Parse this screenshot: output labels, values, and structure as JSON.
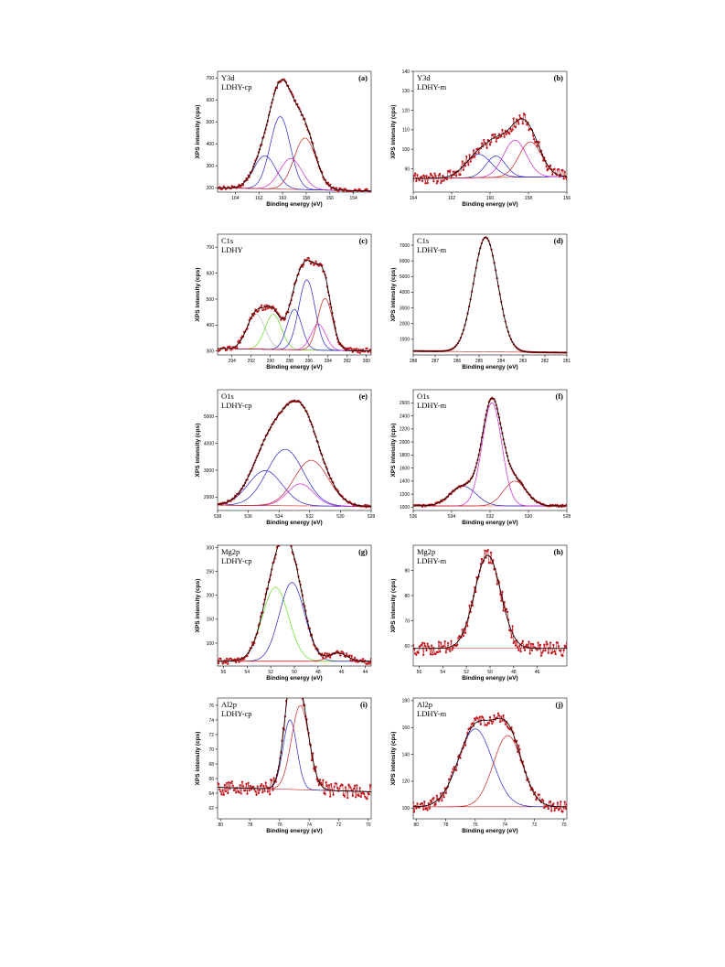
{
  "axis_labels": {
    "x": "Binding energy (eV)",
    "y": "XPS intensity (cps)"
  },
  "colors": {
    "points": "#c0141a",
    "envelope": "#000000",
    "blue": "#2222c8",
    "magenta": "#cc22cc",
    "red": "#c81e1e",
    "green": "#66dd22",
    "gray": "#b8b8b8",
    "frame": "#333333"
  },
  "chart_data": [
    {
      "id": "a",
      "type": "line",
      "title": "(a)",
      "line1": "Y3d",
      "line2": "LDHY-cp",
      "xlim": [
        165.5,
        152.5
      ],
      "ylim": [
        180,
        730
      ],
      "xticks": [
        164,
        162,
        160,
        158,
        156,
        154
      ],
      "yticks": [
        200,
        300,
        400,
        500,
        600,
        700
      ],
      "background": {
        "start": 200,
        "end": 185
      },
      "noise": 8,
      "components": [
        {
          "color": "blue",
          "center": 161.5,
          "fwhm": 2.2,
          "height": 150
        },
        {
          "color": "blue",
          "center": 160.2,
          "fwhm": 2.0,
          "height": 330
        },
        {
          "color": "magenta",
          "center": 159.3,
          "fwhm": 2.2,
          "height": 140
        },
        {
          "color": "red",
          "center": 158.1,
          "fwhm": 2.2,
          "height": 235
        }
      ]
    },
    {
      "id": "b",
      "type": "line",
      "title": "(b)",
      "line1": "Y3d",
      "line2": "LDHY-m",
      "xlim": [
        164,
        156
      ],
      "ylim": [
        78,
        140
      ],
      "xticks": [
        164,
        162,
        160,
        158,
        156
      ],
      "yticks": [
        90,
        100,
        110,
        120,
        130,
        140
      ],
      "background": {
        "start": 85,
        "end": 86
      },
      "noise": 3,
      "components": [
        {
          "color": "blue",
          "center": 160.6,
          "fwhm": 1.6,
          "height": 12
        },
        {
          "color": "blue",
          "center": 159.7,
          "fwhm": 1.2,
          "height": 11
        },
        {
          "color": "magenta",
          "center": 158.7,
          "fwhm": 1.4,
          "height": 19
        },
        {
          "color": "red",
          "center": 157.9,
          "fwhm": 1.4,
          "height": 18
        }
      ]
    },
    {
      "id": "c",
      "type": "line",
      "title": "(c)",
      "line1": "C1s",
      "line2": "LDHY",
      "xlim": [
        295.5,
        279.5
      ],
      "ylim": [
        285,
        750
      ],
      "xticks": [
        294,
        292,
        290,
        288,
        286,
        284,
        282,
        280
      ],
      "yticks": [
        300,
        400,
        500,
        600,
        700
      ],
      "background": {
        "start": 310,
        "end": 300
      },
      "noise": 10,
      "components": [
        {
          "color": "gray",
          "center": 291.5,
          "fwhm": 2.2,
          "height": 135
        },
        {
          "color": "green",
          "center": 289.7,
          "fwhm": 2.0,
          "height": 135
        },
        {
          "color": "blue",
          "center": 287.5,
          "fwhm": 1.8,
          "height": 155
        },
        {
          "color": "blue",
          "center": 286.2,
          "fwhm": 2.0,
          "height": 270
        },
        {
          "color": "magenta",
          "center": 285.0,
          "fwhm": 1.8,
          "height": 100
        },
        {
          "color": "red",
          "center": 284.3,
          "fwhm": 1.8,
          "height": 200
        }
      ]
    },
    {
      "id": "d",
      "type": "line",
      "title": "(d)",
      "line1": "C1s",
      "line2": "LDHY-m",
      "xlim": [
        288,
        281
      ],
      "ylim": [
        0,
        7700
      ],
      "xticks": [
        288,
        287,
        286,
        285,
        284,
        283,
        282,
        281
      ],
      "yticks": [
        1000,
        2000,
        3000,
        4000,
        5000,
        6000,
        7000
      ],
      "background": {
        "start": 250,
        "end": 150
      },
      "noise": 0,
      "components": [
        {
          "color": "red",
          "center": 284.7,
          "fwhm": 1.3,
          "height": 7300
        }
      ]
    },
    {
      "id": "e",
      "type": "line",
      "title": "(e)",
      "line1": "O1s",
      "line2": "LDHY-cp",
      "xlim": [
        538,
        528
      ],
      "ylim": [
        1500,
        6000
      ],
      "xticks": [
        538,
        536,
        534,
        532,
        530,
        528
      ],
      "yticks": [
        2000,
        3000,
        4000,
        5000
      ],
      "background": {
        "start": 1700,
        "end": 1650
      },
      "noise": 40,
      "components": [
        {
          "color": "blue",
          "center": 534.9,
          "fwhm": 2.6,
          "height": 1300
        },
        {
          "color": "blue",
          "center": 533.6,
          "fwhm": 2.8,
          "height": 2100
        },
        {
          "color": "magenta",
          "center": 532.6,
          "fwhm": 2.0,
          "height": 820
        },
        {
          "color": "red",
          "center": 531.9,
          "fwhm": 2.6,
          "height": 1700
        }
      ]
    },
    {
      "id": "f",
      "type": "line",
      "title": "(f)",
      "line1": "O1s",
      "line2": "LDHY-m",
      "xlim": [
        536,
        528
      ],
      "ylim": [
        950,
        2800
      ],
      "xticks": [
        536,
        534,
        532,
        530,
        528
      ],
      "yticks": [
        1000,
        1200,
        1400,
        1600,
        1800,
        2000,
        2200,
        2400,
        2600
      ],
      "background": {
        "start": 1020,
        "end": 1020
      },
      "noise": 15,
      "components": [
        {
          "color": "blue",
          "center": 533.4,
          "fwhm": 1.6,
          "height": 300
        },
        {
          "color": "magenta",
          "center": 531.9,
          "fwhm": 1.2,
          "height": 1580
        },
        {
          "color": "red",
          "center": 530.7,
          "fwhm": 1.4,
          "height": 380
        }
      ]
    },
    {
      "id": "g",
      "type": "line",
      "title": "(g)",
      "line1": "Mg2p",
      "line2": "LDHY-cp",
      "xlim": [
        56.5,
        43.5
      ],
      "ylim": [
        52,
        305
      ],
      "xticks": [
        56,
        54,
        52,
        50,
        48,
        46,
        44
      ],
      "yticks": [
        100,
        150,
        200,
        250,
        300
      ],
      "background": {
        "start": 62,
        "end": 62
      },
      "noise": 6,
      "components": [
        {
          "color": "green",
          "center": 51.6,
          "fwhm": 2.6,
          "height": 155
        },
        {
          "color": "blue",
          "center": 50.2,
          "fwhm": 2.5,
          "height": 165
        },
        {
          "color": "red",
          "center": 46.3,
          "fwhm": 1.8,
          "height": 17
        }
      ]
    },
    {
      "id": "h",
      "type": "line",
      "title": "(h)",
      "line1": "Mg2p",
      "line2": "LDHY-m",
      "xlim": [
        56.5,
        43.5
      ],
      "ylim": [
        52,
        100
      ],
      "xticks": [
        56,
        54,
        52,
        50,
        48,
        46
      ],
      "yticks": [
        60,
        70,
        80,
        90
      ],
      "background": {
        "start": 59,
        "end": 59
      },
      "noise": 3,
      "components": [
        {
          "color": "red",
          "center": 50.2,
          "fwhm": 2.6,
          "height": 37
        }
      ]
    },
    {
      "id": "i",
      "type": "line",
      "title": "(i)",
      "line1": "Al2p",
      "line2": "LDHY-cp",
      "xlim": [
        80.2,
        69.8
      ],
      "ylim": [
        60.5,
        77
      ],
      "xticks": [
        80,
        78,
        76,
        74,
        72,
        70
      ],
      "yticks": [
        62,
        64,
        66,
        68,
        70,
        72,
        74,
        76
      ],
      "background": {
        "start": 64.8,
        "end": 64.2
      },
      "noise": 1,
      "components": [
        {
          "color": "blue",
          "center": 75.3,
          "fwhm": 1.1,
          "height": 9.5
        },
        {
          "color": "red",
          "center": 74.6,
          "fwhm": 1.4,
          "height": 11.5
        }
      ]
    },
    {
      "id": "j",
      "type": "line",
      "title": "(j)",
      "line1": "Al2p",
      "line2": "LDHY-m",
      "xlim": [
        80.2,
        69.8
      ],
      "ylim": [
        92,
        182
      ],
      "xticks": [
        80,
        78,
        76,
        74,
        72,
        70
      ],
      "yticks": [
        100,
        120,
        140,
        160,
        180
      ],
      "background": {
        "start": 101,
        "end": 101
      },
      "noise": 4,
      "components": [
        {
          "color": "blue",
          "center": 76.0,
          "fwhm": 2.7,
          "height": 58
        },
        {
          "color": "red",
          "center": 73.8,
          "fwhm": 2.3,
          "height": 53
        }
      ]
    }
  ]
}
